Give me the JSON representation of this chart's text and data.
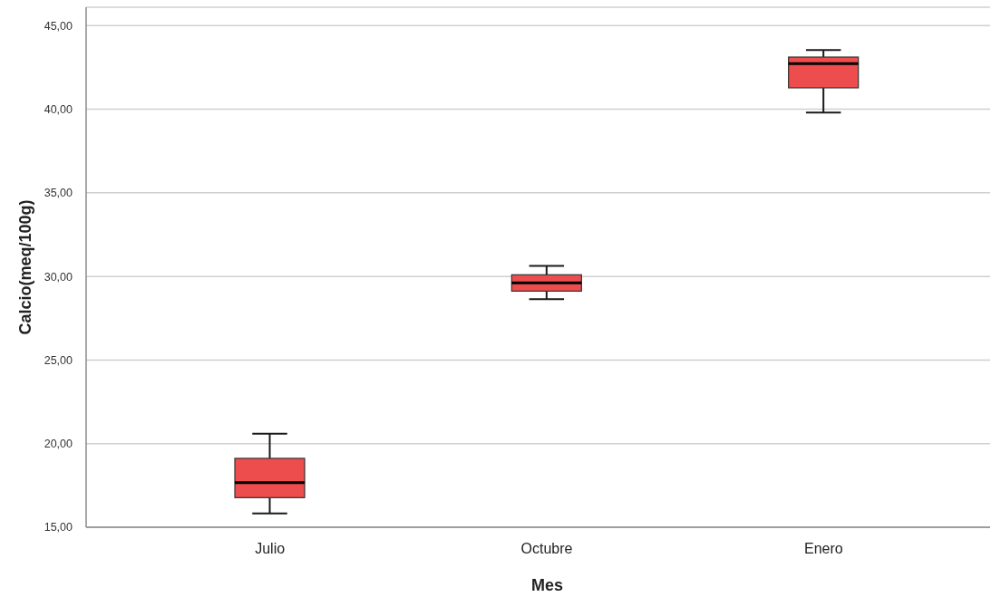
{
  "chart_data": {
    "type": "box",
    "xlabel": "Mes",
    "ylabel": "Calcio(meq/100g)",
    "categories": [
      "Julio",
      "Octubre",
      "Enero"
    ],
    "color": "#ee4d4d",
    "boxes": [
      {
        "low": 15.83,
        "q1": 16.77,
        "median": 17.67,
        "q3": 19.12,
        "high": 20.59
      },
      {
        "low": 28.64,
        "q1": 29.12,
        "median": 29.61,
        "q3": 30.1,
        "high": 30.63
      },
      {
        "low": 39.8,
        "q1": 41.28,
        "median": 42.73,
        "q3": 43.12,
        "high": 43.54
      }
    ],
    "ylim": [
      15,
      46.1
    ],
    "yticks": [
      {
        "value": 15,
        "label": "15,00"
      },
      {
        "value": 20,
        "label": "20,00"
      },
      {
        "value": 25,
        "label": "25,00"
      },
      {
        "value": 30,
        "label": "30,00"
      },
      {
        "value": 35,
        "label": "35,00"
      },
      {
        "value": 40,
        "label": "40,00"
      },
      {
        "value": 45,
        "label": "45,00"
      }
    ],
    "grid": "y"
  }
}
